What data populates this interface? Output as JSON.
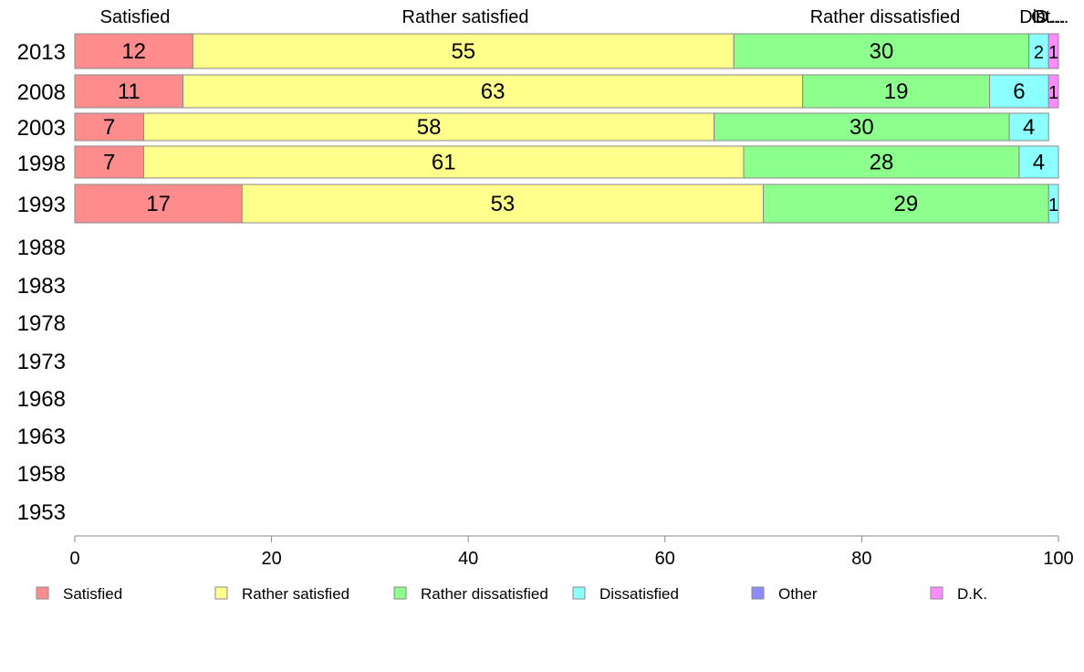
{
  "chart_data": {
    "type": "bar",
    "orientation": "horizontal",
    "stacked": true,
    "categories": [
      "2013",
      "2008",
      "2003",
      "1998",
      "1993",
      "1988",
      "1983",
      "1978",
      "1973",
      "1968",
      "1963",
      "1958",
      "1953"
    ],
    "series": [
      {
        "name": "Satisfied",
        "color": "#ff8c8c",
        "values": [
          12,
          11,
          7,
          7,
          17,
          null,
          null,
          null,
          null,
          null,
          null,
          null,
          null
        ]
      },
      {
        "name": "Rather satisfied",
        "color": "#ffff8c",
        "values": [
          55,
          63,
          58,
          61,
          53,
          null,
          null,
          null,
          null,
          null,
          null,
          null,
          null
        ]
      },
      {
        "name": "Rather dissatisfied",
        "color": "#8cff8c",
        "values": [
          30,
          19,
          30,
          28,
          29,
          null,
          null,
          null,
          null,
          null,
          null,
          null,
          null
        ]
      },
      {
        "name": "Dissatisfied",
        "color": "#8cffff",
        "values": [
          2,
          6,
          4,
          4,
          1,
          null,
          null,
          null,
          null,
          null,
          null,
          null,
          null
        ]
      },
      {
        "name": "Other",
        "color": "#8c8cff",
        "values": [
          0,
          0,
          0,
          0,
          0,
          null,
          null,
          null,
          null,
          null,
          null,
          null,
          null
        ]
      },
      {
        "name": "D.K.",
        "color": "#ff8cff",
        "values": [
          1,
          1,
          0,
          0,
          0,
          null,
          null,
          null,
          null,
          null,
          null,
          null,
          null
        ]
      }
    ],
    "top_labels": [
      "Satisfied",
      "Rather satisfied",
      "Rather dissatisfied",
      "Dis...",
      "Ot...",
      "D...."
    ],
    "xlim": [
      0,
      100
    ],
    "xticks": [
      "0",
      "20",
      "40",
      "60",
      "80",
      "100"
    ],
    "grid": false,
    "legend_position": "bottom"
  }
}
